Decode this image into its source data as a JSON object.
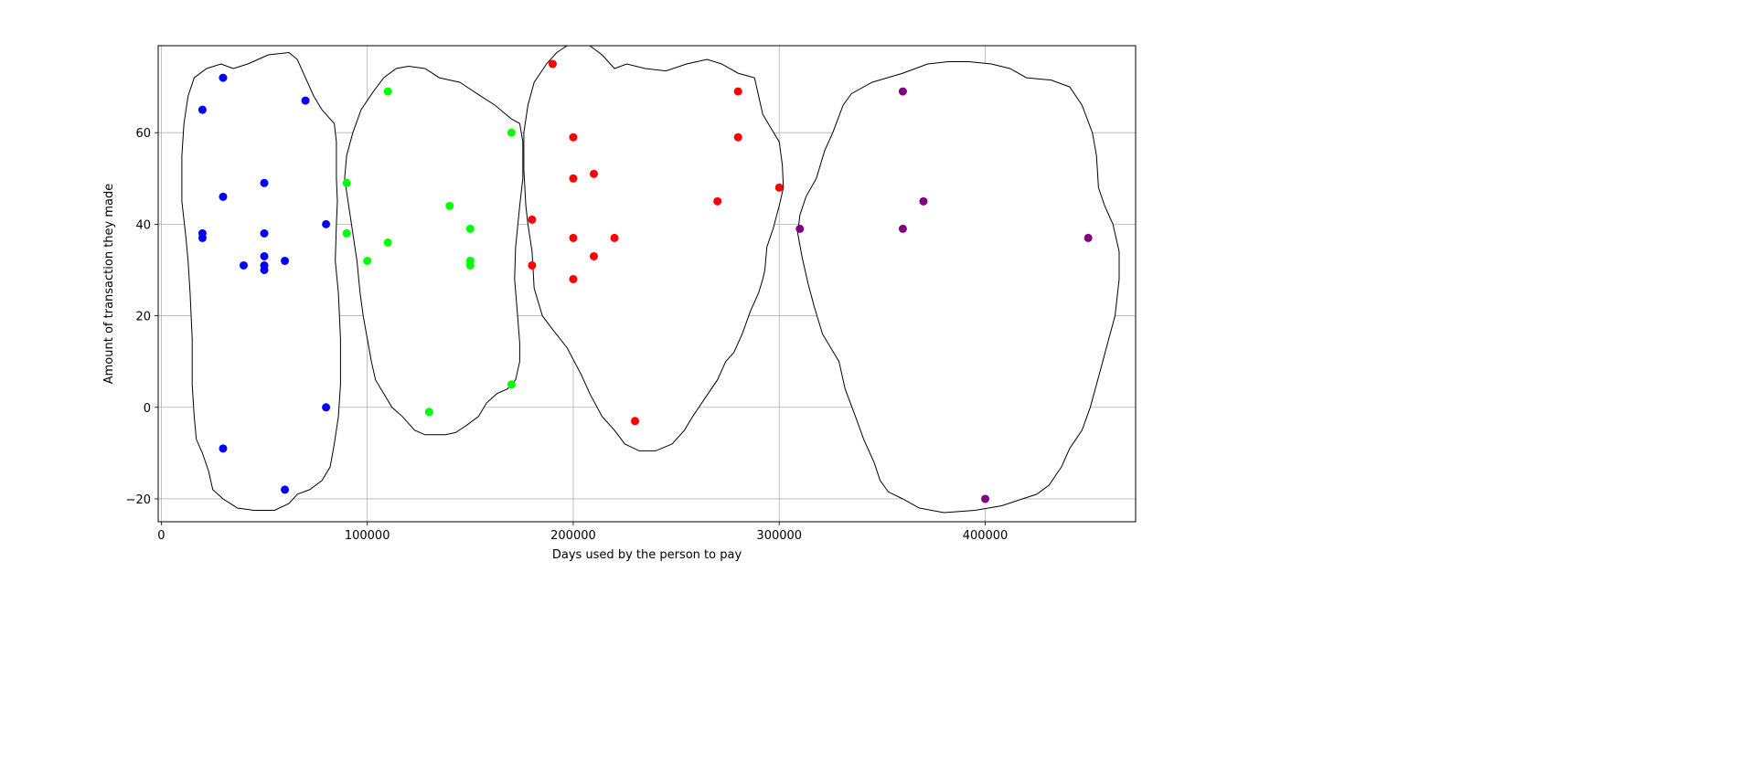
{
  "chart_data": {
    "type": "scatter",
    "xlabel": "Days used by the person to pay",
    "ylabel": "Amount of transaction they made",
    "xlim": [
      -1500,
      473000
    ],
    "ylim": [
      -25,
      79
    ],
    "grid": true,
    "legend": "none",
    "xticks": [
      0,
      100000,
      200000,
      300000,
      400000
    ],
    "xtick_labels": [
      "0",
      "100000",
      "200000",
      "300000",
      "400000"
    ],
    "yticks": [
      -20,
      0,
      20,
      40,
      60
    ],
    "ytick_labels": [
      "−20",
      "0",
      "20",
      "40",
      "60"
    ],
    "series": [
      {
        "color": "#0000ff",
        "points": [
          [
            30000,
            72
          ],
          [
            20000,
            65
          ],
          [
            70000,
            67
          ],
          [
            50000,
            49
          ],
          [
            30000,
            46
          ],
          [
            80000,
            40
          ],
          [
            20000,
            38
          ],
          [
            20000,
            37
          ],
          [
            50000,
            38
          ],
          [
            50000,
            33
          ],
          [
            60000,
            32
          ],
          [
            40000,
            31
          ],
          [
            50000,
            31
          ],
          [
            50000,
            30
          ],
          [
            80000,
            0
          ],
          [
            30000,
            -9
          ],
          [
            60000,
            -18
          ]
        ],
        "hull": [
          [
            52000,
            77
          ],
          [
            62000,
            77.5
          ],
          [
            66000,
            76
          ],
          [
            70000,
            72
          ],
          [
            74000,
            68
          ],
          [
            78000,
            65
          ],
          [
            82000,
            63
          ],
          [
            84000,
            62
          ],
          [
            85000,
            58
          ],
          [
            85000,
            50
          ],
          [
            85500,
            45
          ],
          [
            85000,
            40
          ],
          [
            84500,
            32
          ],
          [
            86000,
            25
          ],
          [
            87000,
            15
          ],
          [
            87000,
            5
          ],
          [
            86000,
            -2
          ],
          [
            84000,
            -8
          ],
          [
            82000,
            -13
          ],
          [
            78000,
            -16
          ],
          [
            72000,
            -18
          ],
          [
            66000,
            -19
          ],
          [
            62000,
            -21
          ],
          [
            55000,
            -22.5
          ],
          [
            45000,
            -22.5
          ],
          [
            37000,
            -22
          ],
          [
            30000,
            -20
          ],
          [
            25000,
            -18
          ],
          [
            23000,
            -14
          ],
          [
            20000,
            -10
          ],
          [
            17000,
            -7
          ],
          [
            16000,
            -2
          ],
          [
            15000,
            5
          ],
          [
            15000,
            15
          ],
          [
            14000,
            25
          ],
          [
            13000,
            32
          ],
          [
            12000,
            37
          ],
          [
            10000,
            45
          ],
          [
            10000,
            55
          ],
          [
            11000,
            62
          ],
          [
            13000,
            68
          ],
          [
            16000,
            72
          ],
          [
            22000,
            74
          ],
          [
            29000,
            75
          ],
          [
            35000,
            74
          ],
          [
            42000,
            75
          ],
          [
            47000,
            76
          ]
        ]
      },
      {
        "color": "#00ff00",
        "points": [
          [
            110000,
            69
          ],
          [
            170000,
            60
          ],
          [
            90000,
            49
          ],
          [
            140000,
            44
          ],
          [
            150000,
            39
          ],
          [
            90000,
            38
          ],
          [
            110000,
            36
          ],
          [
            100000,
            32
          ],
          [
            150000,
            32
          ],
          [
            150000,
            31
          ],
          [
            170000,
            5
          ],
          [
            130000,
            -1
          ]
        ],
        "hull": [
          [
            120000,
            74.5
          ],
          [
            128000,
            74
          ],
          [
            135000,
            72
          ],
          [
            145000,
            71
          ],
          [
            155000,
            68
          ],
          [
            162000,
            66
          ],
          [
            170000,
            63
          ],
          [
            174000,
            62
          ],
          [
            175500,
            58
          ],
          [
            175500,
            50
          ],
          [
            174000,
            44
          ],
          [
            172000,
            35
          ],
          [
            171500,
            28
          ],
          [
            173000,
            20
          ],
          [
            174000,
            14
          ],
          [
            174000,
            10
          ],
          [
            172000,
            6
          ],
          [
            168000,
            4
          ],
          [
            163000,
            3
          ],
          [
            158000,
            1
          ],
          [
            154000,
            -2
          ],
          [
            148000,
            -4
          ],
          [
            143000,
            -5.5
          ],
          [
            138000,
            -6
          ],
          [
            128000,
            -6
          ],
          [
            123000,
            -5
          ],
          [
            117000,
            -2
          ],
          [
            112000,
            0
          ],
          [
            108000,
            3
          ],
          [
            104000,
            6
          ],
          [
            102000,
            10
          ],
          [
            100000,
            15
          ],
          [
            98000,
            20
          ],
          [
            96500,
            25
          ],
          [
            95000,
            32
          ],
          [
            93000,
            38
          ],
          [
            91000,
            44
          ],
          [
            89000,
            50
          ],
          [
            90000,
            55
          ],
          [
            93000,
            60
          ],
          [
            97000,
            65
          ],
          [
            103000,
            69
          ],
          [
            108000,
            72
          ],
          [
            114000,
            74
          ]
        ]
      },
      {
        "color": "#ff0000",
        "points": [
          [
            190000,
            75
          ],
          [
            280000,
            69
          ],
          [
            200000,
            59
          ],
          [
            280000,
            59
          ],
          [
            210000,
            51
          ],
          [
            200000,
            50
          ],
          [
            300000,
            48
          ],
          [
            270000,
            45
          ],
          [
            180000,
            41
          ],
          [
            200000,
            37
          ],
          [
            220000,
            37
          ],
          [
            210000,
            33
          ],
          [
            180000,
            31
          ],
          [
            200000,
            28
          ],
          [
            230000,
            -3
          ]
        ],
        "hull": [
          [
            197000,
            79
          ],
          [
            208000,
            79
          ],
          [
            214000,
            77
          ],
          [
            220000,
            74
          ],
          [
            226000,
            75
          ],
          [
            235000,
            74
          ],
          [
            245000,
            73.5
          ],
          [
            255000,
            75
          ],
          [
            265000,
            76
          ],
          [
            272000,
            75
          ],
          [
            280000,
            73
          ],
          [
            288000,
            72
          ],
          [
            290000,
            68
          ],
          [
            292000,
            64
          ],
          [
            296000,
            61
          ],
          [
            300000,
            58
          ],
          [
            301500,
            53
          ],
          [
            302000,
            48
          ],
          [
            300000,
            44
          ],
          [
            297000,
            39
          ],
          [
            294000,
            35
          ],
          [
            293000,
            30
          ],
          [
            292000,
            28
          ],
          [
            290000,
            25
          ],
          [
            286000,
            21
          ],
          [
            282000,
            16
          ],
          [
            278000,
            12
          ],
          [
            274000,
            10
          ],
          [
            270000,
            6
          ],
          [
            264000,
            2
          ],
          [
            258000,
            -2
          ],
          [
            254000,
            -5
          ],
          [
            248000,
            -8
          ],
          [
            240000,
            -9.5
          ],
          [
            232000,
            -9.5
          ],
          [
            225000,
            -8
          ],
          [
            220000,
            -5
          ],
          [
            214000,
            -2
          ],
          [
            208000,
            3
          ],
          [
            204000,
            7
          ],
          [
            197000,
            13
          ],
          [
            190000,
            17
          ],
          [
            185000,
            20
          ],
          [
            181000,
            26
          ],
          [
            180000,
            34
          ],
          [
            178000,
            40
          ],
          [
            177000,
            44
          ],
          [
            176000,
            52
          ],
          [
            176000,
            60
          ],
          [
            178000,
            66
          ],
          [
            181000,
            71
          ],
          [
            187000,
            75
          ],
          [
            192000,
            77.5
          ]
        ]
      },
      {
        "color": "#800080",
        "points": [
          [
            360000,
            69
          ],
          [
            370000,
            45
          ],
          [
            310000,
            39
          ],
          [
            360000,
            39
          ],
          [
            450000,
            37
          ],
          [
            400000,
            -20
          ]
        ],
        "hull": [
          [
            360000,
            73
          ],
          [
            372000,
            75
          ],
          [
            382000,
            75.5
          ],
          [
            392000,
            75.5
          ],
          [
            403000,
            75
          ],
          [
            412000,
            74
          ],
          [
            420000,
            72
          ],
          [
            432000,
            71.5
          ],
          [
            441000,
            70
          ],
          [
            447000,
            66
          ],
          [
            452000,
            60
          ],
          [
            454000,
            55
          ],
          [
            455000,
            48
          ],
          [
            458000,
            44
          ],
          [
            462000,
            40
          ],
          [
            465000,
            34
          ],
          [
            465000,
            28
          ],
          [
            463000,
            20
          ],
          [
            460000,
            15
          ],
          [
            457000,
            10
          ],
          [
            454000,
            5
          ],
          [
            451000,
            0
          ],
          [
            447000,
            -5
          ],
          [
            441000,
            -9
          ],
          [
            437000,
            -13
          ],
          [
            431000,
            -17
          ],
          [
            425000,
            -19
          ],
          [
            418000,
            -20
          ],
          [
            408000,
            -21.5
          ],
          [
            395000,
            -22.5
          ],
          [
            380000,
            -23
          ],
          [
            368000,
            -22
          ],
          [
            360000,
            -20
          ],
          [
            353000,
            -18.5
          ],
          [
            349000,
            -16
          ],
          [
            346000,
            -12
          ],
          [
            341000,
            -7
          ],
          [
            337000,
            -2
          ],
          [
            332000,
            4
          ],
          [
            329000,
            10
          ],
          [
            325000,
            13
          ],
          [
            321000,
            16
          ],
          [
            317000,
            22
          ],
          [
            314000,
            27
          ],
          [
            311000,
            33
          ],
          [
            309000,
            38
          ],
          [
            310000,
            42
          ],
          [
            313000,
            46
          ],
          [
            318000,
            50
          ],
          [
            322000,
            56
          ],
          [
            326000,
            60
          ],
          [
            331000,
            66
          ],
          [
            335000,
            68.5
          ],
          [
            345000,
            71
          ]
        ]
      }
    ]
  }
}
